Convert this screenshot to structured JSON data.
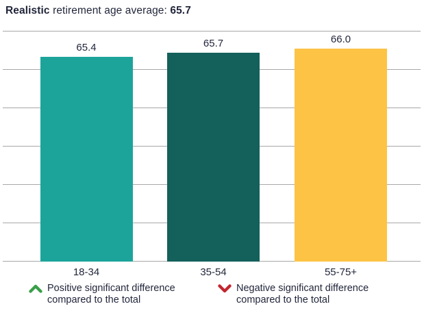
{
  "title": {
    "bold_lead": "Realistic",
    "regular": " retirement age average: ",
    "bold_value": "65.7"
  },
  "chart_data": {
    "type": "bar",
    "title": "Realistic retirement age average: 65.7",
    "categories": [
      "18-34",
      "35-54",
      "55-75+"
    ],
    "values": [
      65.4,
      65.7,
      66.0
    ],
    "value_labels": [
      "65.4",
      "65.7",
      "66.0"
    ],
    "bar_colors": [
      "#1CA49B",
      "#14605B",
      "#FDC345"
    ],
    "xlabel": "",
    "ylabel": "",
    "grid": "horizontal",
    "gridline_count": 7,
    "y_axis_labels_shown": false,
    "legend_position": "bottom"
  },
  "legend": {
    "items": [
      {
        "icon": "chevron-up-icon",
        "color": "#3A9E49",
        "label": "Positive significant difference compared to the total"
      },
      {
        "icon": "chevron-down-icon",
        "color": "#C1272F",
        "label": "Negative significant difference compared to the total"
      }
    ]
  },
  "colors": {
    "text": "#22263B",
    "gridline": "#A7A7A7",
    "background": "#FFFFFF"
  }
}
